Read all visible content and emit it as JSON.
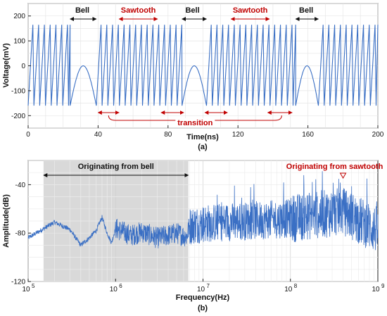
{
  "chart_data": [
    {
      "type": "line",
      "panel_label": "(a)",
      "xlabel": "Time(ns)",
      "ylabel": "Voltage(mV)",
      "xlim": [
        0,
        200
      ],
      "ylim": [
        -250,
        250
      ],
      "xticks": [
        "0",
        "40",
        "80",
        "120",
        "160",
        "200"
      ],
      "yticks": [
        "-200",
        "-100",
        "0",
        "100",
        "200"
      ],
      "grid": true,
      "line_color": "#3a6fc4",
      "segments": [
        {
          "type": "sawtooth",
          "start": 0,
          "end": 24
        },
        {
          "type": "bell",
          "start": 24,
          "end": 39,
          "peak": 0
        },
        {
          "type": "sawtooth",
          "start": 39,
          "end": 88
        },
        {
          "type": "bell",
          "start": 88,
          "end": 102,
          "peak": 0
        },
        {
          "type": "sawtooth",
          "start": 102,
          "end": 153
        },
        {
          "type": "bell",
          "start": 153,
          "end": 166,
          "peak": 0
        },
        {
          "type": "sawtooth",
          "start": 166,
          "end": 200
        }
      ],
      "sawtooth_period_ns": 3.3,
      "sawtooth_max": 165,
      "sawtooth_min": -160,
      "annotations": {
        "bell_labels": [
          {
            "text": "Bell",
            "x": 31,
            "span": [
              24,
              39
            ]
          },
          {
            "text": "Bell",
            "x": 94,
            "span": [
              88,
              102
            ]
          },
          {
            "text": "Bell",
            "x": 159,
            "span": [
              153,
              166
            ]
          }
        ],
        "sawtooth_labels": [
          {
            "text": "Sawtooth",
            "x": 63,
            "span": [
              52,
              74
            ]
          },
          {
            "text": "Sawtooth",
            "x": 127,
            "span": [
              116,
              138
            ]
          }
        ],
        "transition_label": "transition",
        "transition_arrows": [
          {
            "from": 40,
            "to": 52
          },
          {
            "from": 76,
            "to": 89
          },
          {
            "from": 101,
            "to": 114
          },
          {
            "from": 137,
            "to": 151
          }
        ]
      }
    },
    {
      "type": "line",
      "panel_label": "(b)",
      "xlabel": "Frequency(Hz)",
      "ylabel": "Amplitude(dB)",
      "xscale": "log",
      "xlim": [
        100000,
        1000000000
      ],
      "ylim": [
        -120,
        -20
      ],
      "xticks": [
        {
          "base": "10",
          "exp": "5"
        },
        {
          "base": "10",
          "exp": "6"
        },
        {
          "base": "10",
          "exp": "7"
        },
        {
          "base": "10",
          "exp": "8"
        },
        {
          "base": "10",
          "exp": "9"
        }
      ],
      "yticks": [
        "-120",
        "-80",
        "-40"
      ],
      "grid": true,
      "line_color": "#3a6fc4",
      "shaded_region": {
        "from": 150000,
        "to": 6800000,
        "color": "#d9d9d9"
      },
      "annotations": {
        "bell_origin_text": "Originating from bell",
        "bell_origin_span": [
          150000,
          6800000
        ],
        "sawtooth_origin_text": "Originating from sawtooth",
        "sawtooth_origin_at": 400000000
      },
      "spectrum_points": [
        [
          100000,
          -84
        ],
        [
          200000,
          -71
        ],
        [
          300000,
          -77
        ],
        [
          400000,
          -90
        ],
        [
          500000,
          -84
        ],
        [
          600000,
          -78
        ],
        [
          700000,
          -67
        ],
        [
          800000,
          -80
        ],
        [
          900000,
          -88
        ],
        [
          1000000,
          -76
        ],
        [
          1500000,
          -82
        ],
        [
          2000000,
          -79
        ],
        [
          3000000,
          -84
        ],
        [
          5000000,
          -80
        ],
        [
          6500000,
          -83
        ],
        [
          7000000,
          -74
        ],
        [
          10000000,
          -72
        ],
        [
          100000000,
          -68
        ],
        [
          400000000,
          -62
        ],
        [
          1000000000,
          -78
        ]
      ]
    }
  ]
}
